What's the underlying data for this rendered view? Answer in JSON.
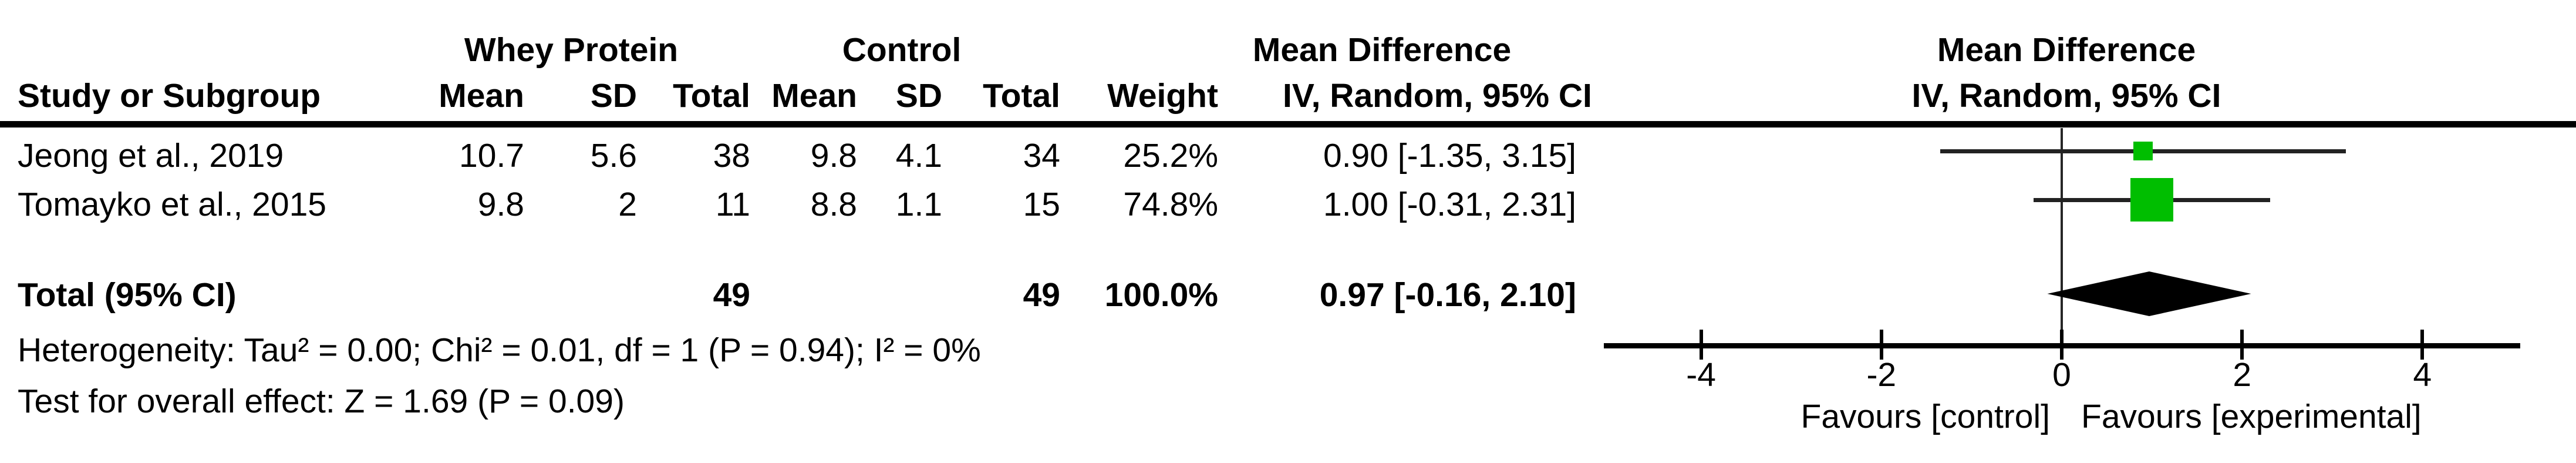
{
  "table": {
    "group_headers": {
      "experimental": "Whey Protein",
      "control": "Control",
      "effect": "Mean Difference",
      "plot": "Mean Difference"
    },
    "subheaders": {
      "study": "Study or Subgroup",
      "mean": "Mean",
      "sd": "SD",
      "total": "Total",
      "weight": "Weight",
      "ci": "IV, Random, 95% CI"
    },
    "rows": [
      {
        "study": "Jeong et al., 2019",
        "mean1": "10.7",
        "sd1": "5.6",
        "total1": "38",
        "mean2": "9.8",
        "sd2": "4.1",
        "total2": "34",
        "weight": "25.2%",
        "ci": "0.90 [-1.35, 3.15]"
      },
      {
        "study": "Tomayko et al., 2015",
        "mean1": "9.8",
        "sd1": "2",
        "total1": "11",
        "mean2": "8.8",
        "sd2": "1.1",
        "total2": "15",
        "weight": "74.8%",
        "ci": "1.00 [-0.31, 2.31]"
      }
    ],
    "total_row": {
      "label": "Total (95% CI)",
      "total1": "49",
      "total2": "49",
      "weight": "100.0%",
      "ci": "0.97 [-0.16, 2.10]"
    },
    "footnotes": {
      "heterogeneity": "Heterogeneity: Tau² = 0.00; Chi² = 0.01, df = 1 (P = 0.94); I² = 0%",
      "overall_effect": "Test for overall effect: Z = 1.69 (P = 0.09)"
    }
  },
  "chart_data": {
    "type": "forest",
    "effect_measure": "Mean Difference",
    "model": "IV, Random, 95% CI",
    "studies": [
      {
        "name": "Jeong et al., 2019",
        "md": 0.9,
        "ci_low": -1.35,
        "ci_high": 3.15,
        "weight_pct": 25.2
      },
      {
        "name": "Tomayko et al., 2015",
        "md": 1.0,
        "ci_low": -0.31,
        "ci_high": 2.31,
        "weight_pct": 74.8
      }
    ],
    "total": {
      "label": "Total (95% CI)",
      "md": 0.97,
      "ci_low": -0.16,
      "ci_high": 2.1,
      "weight_pct": 100.0
    },
    "axis": {
      "ticks": [
        -4,
        -2,
        0,
        2,
        4
      ],
      "min": -5.1,
      "max": 5.1,
      "label_left": "Favours [control]",
      "label_right": "Favours [experimental]"
    },
    "colors": {
      "marker": "#00BE00",
      "diamond": "#000000",
      "line": "#222222"
    }
  }
}
